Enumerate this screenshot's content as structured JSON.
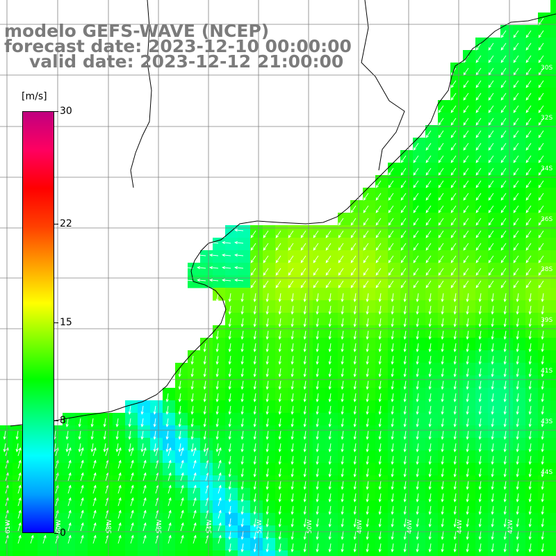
{
  "title": {
    "line1": "modelo GEFS-WAVE (NCEP)",
    "line2": "forecast date: 2023-12-10 00:00:00",
    "line3": "valid date: 2023-12-12 21:00:00"
  },
  "colorbar": {
    "unit": "[m/s]",
    "ticks": [
      {
        "label": "30",
        "value": 30
      },
      {
        "label": "22",
        "value": 22
      },
      {
        "label": "15",
        "value": 15
      },
      {
        "label": "8",
        "value": 8
      },
      {
        "label": "0",
        "value": 0
      }
    ],
    "range": [
      0,
      30
    ],
    "colors": [
      "#0000ff",
      "#00a0ff",
      "#00ffff",
      "#00ff80",
      "#00ff00",
      "#80ff00",
      "#ffff00",
      "#ffa000",
      "#ff4000",
      "#ff0000",
      "#ff0060",
      "#c00080"
    ]
  },
  "map": {
    "variable": "wind speed and direction",
    "lat_labels": [
      "30S",
      "32S",
      "34S",
      "36S",
      "38S",
      "39S",
      "41S",
      "43S",
      "44S"
    ],
    "lon_labels": [
      "61W",
      "60W",
      "58W",
      "56W",
      "54W",
      "52W",
      "50W",
      "48W",
      "46W",
      "44W",
      "42W"
    ],
    "colors": {
      "land": "#ffffff",
      "coast": "#000000",
      "grid": "#808080",
      "arrow": "#ffffff",
      "title": "#7b7b7b"
    }
  }
}
